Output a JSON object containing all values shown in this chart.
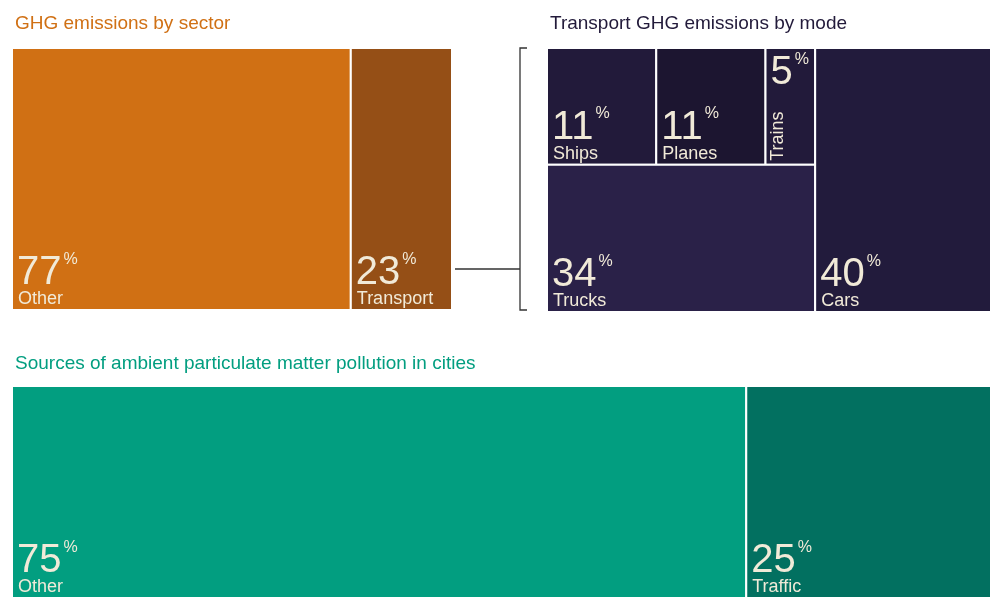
{
  "chart_data": [
    {
      "type": "other",
      "title": "GHG emissions by sector",
      "categories": [
        "Other",
        "Transport"
      ],
      "values": [
        77,
        23
      ],
      "value_labels": [
        "77%",
        "23%"
      ],
      "colors": [
        "#d07014",
        "#954f16"
      ]
    },
    {
      "type": "other",
      "title": "Transport GHG emissions by mode",
      "categories": [
        "Ships",
        "Planes",
        "Trains",
        "Trucks",
        "Cars"
      ],
      "values": [
        11,
        11,
        5,
        34,
        40
      ],
      "value_labels": [
        "11%",
        "11%",
        "5%",
        "34%",
        "40%"
      ],
      "colors": [
        "#221a3a",
        "#1c1530",
        "#221a3a",
        "#2a2148",
        "#221b3c"
      ]
    },
    {
      "type": "other",
      "title": "Sources of ambient particulate matter pollution in cities",
      "categories": [
        "Other",
        "Traffic"
      ],
      "values": [
        75,
        25
      ],
      "value_labels": [
        "75%",
        "25%"
      ],
      "colors": [
        "#029e80",
        "#027060"
      ]
    }
  ]
}
